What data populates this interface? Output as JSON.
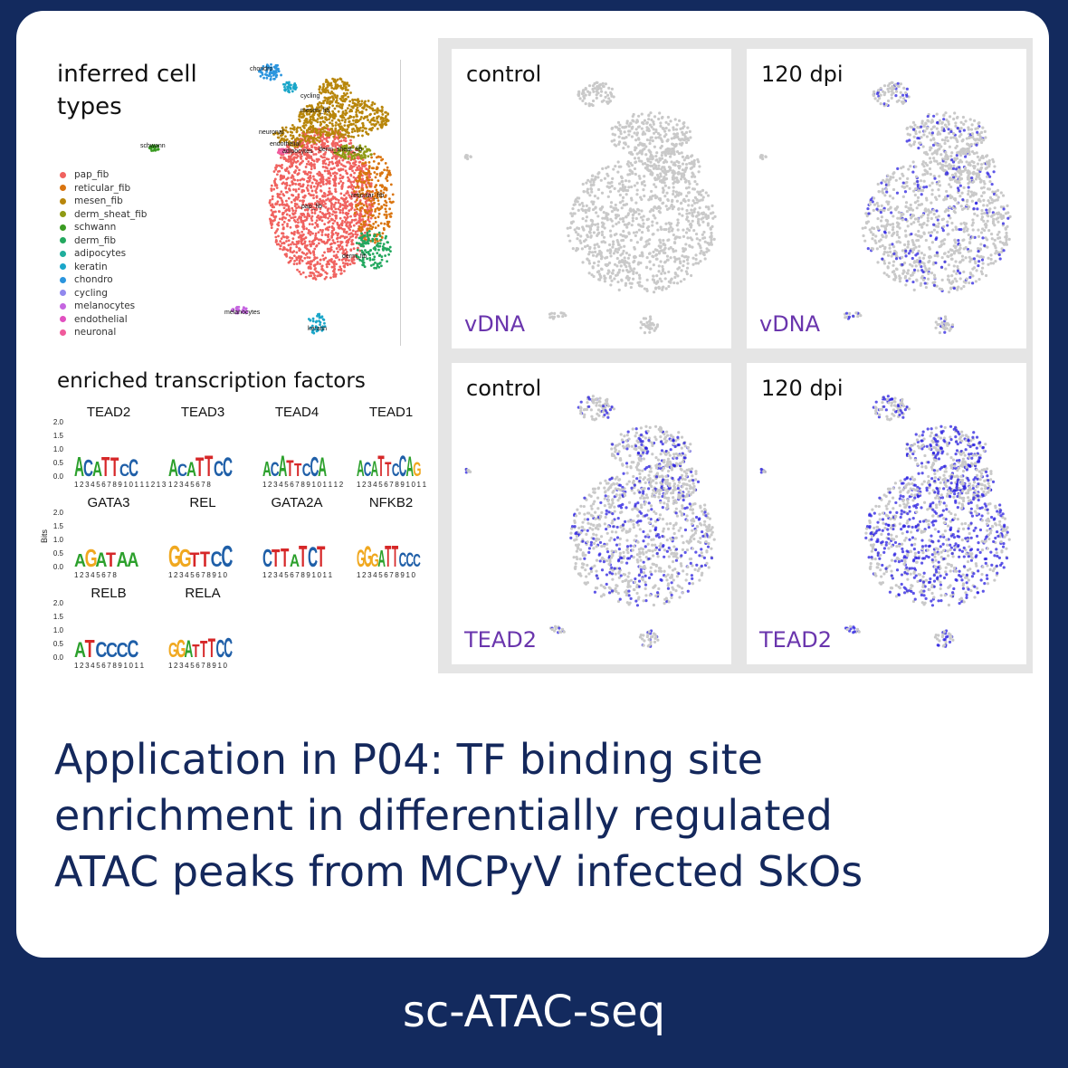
{
  "umap": {
    "title_line1": "inferred cell",
    "title_line2": "types",
    "cluster_labels": {
      "chondro": "chondro",
      "cycling": "cycling",
      "mesen": "mesen_fib",
      "neuronal": "neuronal",
      "endothelial": "endothelial",
      "adipocytes": "adipocytes",
      "derm_sheat": "derm_sheat_fib",
      "schwann": "schwann",
      "reticular": "reticular_fib",
      "pap": "pap_fib",
      "derm": "derm_fib",
      "melanocytes": "melanocytes",
      "keratin": "keratin"
    },
    "legend": [
      {
        "label": "pap_fib",
        "color": "#f0625f"
      },
      {
        "label": "reticular_fib",
        "color": "#d9740f"
      },
      {
        "label": "mesen_fib",
        "color": "#b8860b"
      },
      {
        "label": "derm_sheat_fib",
        "color": "#8f9a14"
      },
      {
        "label": "schwann",
        "color": "#3a9b22"
      },
      {
        "label": "derm_fib",
        "color": "#23a85f"
      },
      {
        "label": "adipocytes",
        "color": "#1fae9c"
      },
      {
        "label": "keratin",
        "color": "#1aa6c9"
      },
      {
        "label": "chondro",
        "color": "#2b95de"
      },
      {
        "label": "cycling",
        "color": "#9188ee"
      },
      {
        "label": "melanocytes",
        "color": "#c565e0"
      },
      {
        "label": "endothelial",
        "color": "#e150c0"
      },
      {
        "label": "neuronal",
        "color": "#f05a9b"
      }
    ]
  },
  "tf": {
    "title": "enriched transcription factors",
    "ylabel": "Bits",
    "yticks": [
      "2.0",
      "1.5",
      "1.0",
      "0.5",
      "0.0"
    ],
    "motifs": [
      {
        "name": "TEAD2",
        "seq": "ACATTCC",
        "positions": "12345678910111213"
      },
      {
        "name": "TEAD3",
        "seq": "ACATTCC",
        "positions": "12345678"
      },
      {
        "name": "TEAD4",
        "seq": "ACATTCCA",
        "positions": "123456789101112"
      },
      {
        "name": "TEAD1",
        "seq": "ACATTCCAG",
        "positions": "12345678910111213"
      },
      {
        "name": "GATA3",
        "seq": "AGATAA",
        "positions": "12345678"
      },
      {
        "name": "REL",
        "seq": "GGTTCC",
        "positions": "12345678910"
      },
      {
        "name": "GATA2A",
        "seq": "CTTATCT",
        "positions": "1234567891011"
      },
      {
        "name": "NFKB2",
        "seq": "GGGATTCCC",
        "positions": "12345678910"
      },
      {
        "name": "RELB",
        "seq": "ATCCCC",
        "positions": "1234567891011"
      },
      {
        "name": "RELA",
        "seq": "GGATTTCC",
        "positions": "12345678910"
      }
    ]
  },
  "panels": [
    {
      "condition": "control",
      "feature": "vDNA",
      "intensity": 0.0
    },
    {
      "condition": "120 dpi",
      "feature": "vDNA",
      "intensity": 0.25
    },
    {
      "condition": "control",
      "feature": "TEAD2",
      "intensity": 0.45
    },
    {
      "condition": "120 dpi",
      "feature": "TEAD2",
      "intensity": 0.8
    }
  ],
  "caption": {
    "line1": "Application in P04: TF binding site",
    "line2": "enrichment in differentially regulated",
    "line3": "ATAC peaks from MCPyV infected SkOs"
  },
  "footer": "sc-ATAC-seq",
  "colors": {
    "background": "#132a5e",
    "card": "#ffffff",
    "caption": "#14285c",
    "feature_label": "#6a35ad",
    "umap_grey": "#c9c9c9",
    "umap_blue": "#2a1fe0",
    "base_A": "#2ca02c",
    "base_C": "#1f5fa8",
    "base_G": "#f0a81f",
    "base_T": "#d62728"
  }
}
